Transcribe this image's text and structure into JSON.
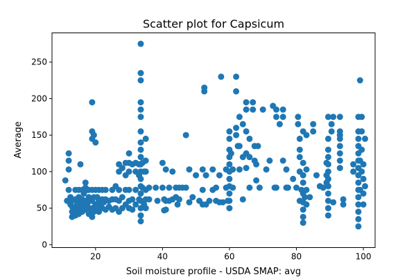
{
  "chart_data": {
    "type": "scatter",
    "title": "Scatter plot for Capsicum",
    "xlabel": "Soil moisture profile - USDA SMAP: avg",
    "ylabel": "Average",
    "xlim": [
      7,
      103.5
    ],
    "ylim": [
      -4,
      290
    ],
    "xticks": [
      20,
      40,
      60,
      80,
      100
    ],
    "yticks": [
      0,
      50,
      100,
      150,
      200,
      250
    ],
    "grid": false,
    "legend": "none",
    "marker_color": "#1f77b4",
    "series": [
      {
        "points": [
          [
            11,
            88
          ],
          [
            11.5,
            60
          ],
          [
            12,
            125
          ],
          [
            12,
            115
          ],
          [
            12,
            103
          ],
          [
            12,
            75
          ],
          [
            12.5,
            65
          ],
          [
            12.5,
            55
          ],
          [
            13,
            60
          ],
          [
            13,
            52
          ],
          [
            13,
            45
          ],
          [
            13,
            38
          ],
          [
            13.5,
            50
          ],
          [
            13.5,
            40
          ],
          [
            14,
            75
          ],
          [
            14,
            62
          ],
          [
            14,
            48
          ],
          [
            14,
            40
          ],
          [
            14.5,
            55
          ],
          [
            14.5,
            45
          ],
          [
            15,
            75
          ],
          [
            15,
            65
          ],
          [
            15,
            60
          ],
          [
            15,
            50
          ],
          [
            15,
            42
          ],
          [
            15.5,
            110
          ],
          [
            15.5,
            48
          ],
          [
            16,
            75
          ],
          [
            16,
            62
          ],
          [
            16,
            55
          ],
          [
            16,
            45
          ],
          [
            16.5,
            70
          ],
          [
            16.5,
            50
          ],
          [
            17,
            85
          ],
          [
            17,
            78
          ],
          [
            17,
            60
          ],
          [
            17,
            48
          ],
          [
            17.5,
            75
          ],
          [
            17.5,
            55
          ],
          [
            18,
            75
          ],
          [
            18,
            65
          ],
          [
            18,
            50
          ],
          [
            18,
            42
          ],
          [
            18.5,
            60
          ],
          [
            18.5,
            48
          ],
          [
            19,
            195
          ],
          [
            19,
            155
          ],
          [
            19,
            145
          ],
          [
            19,
            75
          ],
          [
            19,
            60
          ],
          [
            19,
            50
          ],
          [
            19,
            38
          ],
          [
            19.5,
            150
          ],
          [
            19.5,
            65
          ],
          [
            19.5,
            45
          ],
          [
            20,
            140
          ],
          [
            20,
            75
          ],
          [
            20,
            55
          ],
          [
            20.5,
            65
          ],
          [
            20.5,
            50
          ],
          [
            21,
            75
          ],
          [
            21,
            60
          ],
          [
            21,
            45
          ],
          [
            21.5,
            55
          ],
          [
            22,
            75
          ],
          [
            22,
            62
          ],
          [
            22,
            50
          ],
          [
            22.5,
            58
          ],
          [
            23,
            75
          ],
          [
            23,
            62
          ],
          [
            23,
            48
          ],
          [
            24,
            60
          ],
          [
            24,
            52
          ],
          [
            25,
            75
          ],
          [
            25,
            62
          ],
          [
            25,
            48
          ],
          [
            26,
            80
          ],
          [
            26,
            62
          ],
          [
            26,
            50
          ],
          [
            27,
            100
          ],
          [
            27,
            110
          ],
          [
            27,
            75
          ],
          [
            27,
            60
          ],
          [
            27,
            45
          ],
          [
            28,
            105
          ],
          [
            28,
            65
          ],
          [
            28,
            50
          ],
          [
            29,
            112
          ],
          [
            29,
            95
          ],
          [
            29,
            75
          ],
          [
            29,
            55
          ],
          [
            30,
            125
          ],
          [
            30,
            112
          ],
          [
            30,
            100
          ],
          [
            30,
            75
          ],
          [
            30,
            60
          ],
          [
            30,
            50
          ],
          [
            31,
            110
          ],
          [
            31,
            62
          ],
          [
            31,
            48
          ],
          [
            32,
            112
          ],
          [
            32,
            100
          ],
          [
            32,
            75
          ],
          [
            32,
            55
          ],
          [
            33,
            110
          ],
          [
            33,
            95
          ],
          [
            33,
            62
          ],
          [
            33.5,
            275
          ],
          [
            33.5,
            235
          ],
          [
            33.5,
            225
          ],
          [
            33.5,
            195
          ],
          [
            33.5,
            185
          ],
          [
            33.5,
            175
          ],
          [
            33.5,
            155
          ],
          [
            33.5,
            140
          ],
          [
            33.5,
            130
          ],
          [
            33.5,
            120
          ],
          [
            33.5,
            110
          ],
          [
            33.5,
            100
          ],
          [
            33.5,
            90
          ],
          [
            33.5,
            80
          ],
          [
            33.5,
            70
          ],
          [
            33.5,
            60
          ],
          [
            33.5,
            50
          ],
          [
            33.5,
            40
          ],
          [
            33.5,
            32
          ],
          [
            34,
            112
          ],
          [
            34,
            78
          ],
          [
            34.5,
            100
          ],
          [
            34.5,
            55
          ],
          [
            35,
            145
          ],
          [
            35,
            115
          ],
          [
            35,
            100
          ],
          [
            35,
            75
          ],
          [
            35,
            62
          ],
          [
            35,
            50
          ],
          [
            36,
            78
          ],
          [
            36,
            62
          ],
          [
            38,
            78
          ],
          [
            38.5,
            60
          ],
          [
            40,
            112
          ],
          [
            40,
            78
          ],
          [
            40.5,
            62
          ],
          [
            40.5,
            47
          ],
          [
            41,
            103
          ],
          [
            41,
            60
          ],
          [
            41,
            48
          ],
          [
            42,
            78
          ],
          [
            42,
            60
          ],
          [
            43,
            100
          ],
          [
            43,
            62
          ],
          [
            44,
            78
          ],
          [
            44,
            65
          ],
          [
            44.5,
            55
          ],
          [
            45,
            78
          ],
          [
            45,
            62
          ],
          [
            46,
            78
          ],
          [
            47,
            150
          ],
          [
            47,
            78
          ],
          [
            48,
            103
          ],
          [
            48,
            58
          ],
          [
            49,
            65
          ],
          [
            50,
            95
          ],
          [
            51,
            60
          ],
          [
            52,
            103
          ],
          [
            52,
            75
          ],
          [
            52,
            55
          ],
          [
            52.5,
            215
          ],
          [
            52.5,
            210
          ],
          [
            53,
            95
          ],
          [
            53,
            55
          ],
          [
            54,
            60
          ],
          [
            55,
            103
          ],
          [
            55,
            75
          ],
          [
            56,
            78
          ],
          [
            56,
            60
          ],
          [
            57,
            95
          ],
          [
            57,
            58
          ],
          [
            57.5,
            230
          ],
          [
            58,
            58
          ],
          [
            59,
            103
          ],
          [
            59,
            78
          ],
          [
            59.5,
            60
          ],
          [
            60,
            155
          ],
          [
            60,
            145
          ],
          [
            60,
            130
          ],
          [
            60,
            120
          ],
          [
            60,
            110
          ],
          [
            60,
            100
          ],
          [
            60,
            90
          ],
          [
            60,
            80
          ],
          [
            60,
            70
          ],
          [
            60,
            60
          ],
          [
            60,
            50
          ],
          [
            60.5,
            125
          ],
          [
            61,
            103
          ],
          [
            61,
            78
          ],
          [
            62,
            230
          ],
          [
            62,
            210
          ],
          [
            62,
            160
          ],
          [
            62,
            150
          ],
          [
            62.5,
            135
          ],
          [
            63,
            175
          ],
          [
            63,
            135
          ],
          [
            63,
            103
          ],
          [
            64,
            165
          ],
          [
            64,
            120
          ],
          [
            64,
            62
          ],
          [
            65,
            195
          ],
          [
            65,
            185
          ],
          [
            65,
            155
          ],
          [
            65,
            125
          ],
          [
            65,
            105
          ],
          [
            66,
            145
          ],
          [
            66,
            120
          ],
          [
            66,
            78
          ],
          [
            67,
            195
          ],
          [
            67,
            185
          ],
          [
            67.5,
            135
          ],
          [
            67.5,
            115
          ],
          [
            68,
            110
          ],
          [
            68,
            88
          ],
          [
            68.5,
            135
          ],
          [
            69,
            78
          ],
          [
            70,
            185
          ],
          [
            71,
            103
          ],
          [
            72,
            115
          ],
          [
            73,
            190
          ],
          [
            73.5,
            78
          ],
          [
            74,
            185
          ],
          [
            74,
            175
          ],
          [
            74,
            78
          ],
          [
            75,
            165
          ],
          [
            76,
            185
          ],
          [
            76,
            175
          ],
          [
            76,
            115
          ],
          [
            77,
            103
          ],
          [
            77,
            78
          ],
          [
            77.5,
            78
          ],
          [
            79,
            90
          ],
          [
            80,
            78
          ],
          [
            80.5,
            175
          ],
          [
            80.5,
            165
          ],
          [
            81,
            145
          ],
          [
            81,
            130
          ],
          [
            81,
            120
          ],
          [
            81,
            100
          ],
          [
            81,
            60
          ],
          [
            81.5,
            75
          ],
          [
            82,
            155
          ],
          [
            82,
            112
          ],
          [
            82,
            95
          ],
          [
            82,
            85
          ],
          [
            82,
            70
          ],
          [
            82,
            58
          ],
          [
            82,
            48
          ],
          [
            82,
            38
          ],
          [
            82,
            30
          ],
          [
            82.5,
            65
          ],
          [
            83,
            150
          ],
          [
            83,
            103
          ],
          [
            83,
            75
          ],
          [
            83,
            55
          ],
          [
            84,
            65
          ],
          [
            85,
            165
          ],
          [
            85,
            155
          ],
          [
            86,
            95
          ],
          [
            87,
            80
          ],
          [
            88,
            78
          ],
          [
            89,
            112
          ],
          [
            89,
            95
          ],
          [
            89,
            85
          ],
          [
            89.5,
            175
          ],
          [
            89.5,
            145
          ],
          [
            89.5,
            130
          ],
          [
            89.5,
            120
          ],
          [
            89.5,
            110
          ],
          [
            89.5,
            100
          ],
          [
            89.5,
            90
          ],
          [
            89.5,
            80
          ],
          [
            89.5,
            70
          ],
          [
            89.5,
            60
          ],
          [
            89.5,
            50
          ],
          [
            89.5,
            40
          ],
          [
            90.5,
            165
          ],
          [
            90.5,
            155
          ],
          [
            91,
            175
          ],
          [
            91,
            58
          ],
          [
            93,
            175
          ],
          [
            93,
            155
          ],
          [
            93,
            150
          ],
          [
            93,
            145
          ],
          [
            93,
            135
          ],
          [
            93,
            125
          ],
          [
            93,
            115
          ],
          [
            93,
            105
          ],
          [
            94,
            62
          ],
          [
            94,
            55
          ],
          [
            97,
            110
          ],
          [
            97,
            100
          ],
          [
            98.5,
            175
          ],
          [
            98.5,
            155
          ],
          [
            98.5,
            145
          ],
          [
            98.5,
            135
          ],
          [
            98.5,
            125
          ],
          [
            98.5,
            115
          ],
          [
            98.5,
            105
          ],
          [
            98.5,
            95
          ],
          [
            98.5,
            85
          ],
          [
            98.5,
            75
          ],
          [
            98.5,
            65
          ],
          [
            98.5,
            55
          ],
          [
            98.5,
            45
          ],
          [
            98.5,
            35
          ],
          [
            98.5,
            25
          ],
          [
            99,
            225
          ],
          [
            99,
            115
          ],
          [
            99,
            75
          ],
          [
            99.5,
            175
          ],
          [
            99.5,
            155
          ],
          [
            99.5,
            130
          ],
          [
            99.5,
            100
          ],
          [
            100,
            110
          ],
          [
            100,
            90
          ],
          [
            100,
            70
          ],
          [
            100,
            55
          ],
          [
            100.5,
            145
          ],
          [
            100.5,
            80
          ]
        ]
      }
    ]
  }
}
